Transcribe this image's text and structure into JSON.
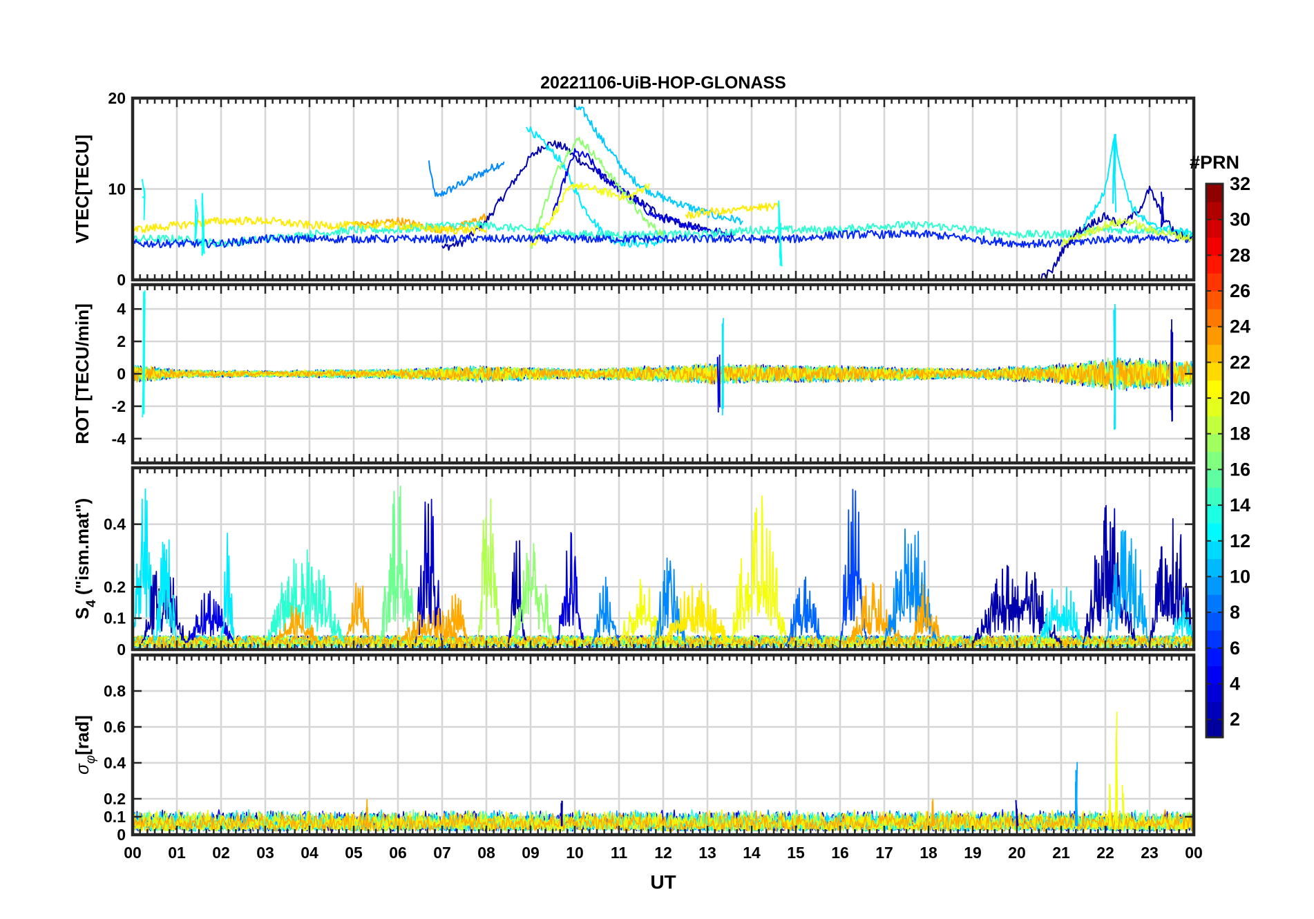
{
  "title": "20221106-UiB-HOP-GLONASS",
  "x_axis": {
    "label": "UT",
    "ticks": [
      "00",
      "01",
      "02",
      "03",
      "04",
      "05",
      "06",
      "07",
      "08",
      "09",
      "10",
      "11",
      "12",
      "13",
      "14",
      "15",
      "16",
      "17",
      "18",
      "19",
      "20",
      "21",
      "22",
      "23",
      "00"
    ],
    "range_hours": [
      0,
      24
    ]
  },
  "colorbar": {
    "label": "#PRN",
    "range": [
      1,
      32
    ],
    "ticks": [
      2,
      4,
      6,
      8,
      10,
      12,
      14,
      16,
      18,
      20,
      22,
      24,
      26,
      28,
      30,
      32
    ],
    "colormap": [
      "#00008f",
      "#0000ff",
      "#0080ff",
      "#00ffff",
      "#80ff80",
      "#ffff00",
      "#ff8000",
      "#ff0000",
      "#800000"
    ]
  },
  "chart_data": [
    {
      "type": "line",
      "panel": "VTEC",
      "ylabel": "VTEC[TECU]",
      "ylim": [
        0,
        20
      ],
      "yticks": [
        "0",
        "10",
        "20"
      ],
      "ytick_values": [
        0,
        10,
        20
      ],
      "grid": true,
      "series": [
        {
          "prn": 9,
          "x": [
            6.7,
            6.8,
            6.9,
            7.0,
            7.2,
            7.4,
            7.6,
            7.8,
            8.0,
            8.2,
            8.4
          ],
          "y": [
            13,
            10,
            9,
            9.5,
            10,
            10.5,
            11,
            11.5,
            12,
            12.5,
            13
          ]
        },
        {
          "prn": 2,
          "x": [
            7.0,
            7.5,
            8.0,
            8.5,
            9.0,
            9.3,
            9.5,
            9.8,
            10.0,
            10.3,
            10.6,
            11.0,
            11.5,
            12.0,
            12.5,
            13.0
          ],
          "y": [
            3.5,
            4.2,
            6.5,
            10,
            13.5,
            14.8,
            15,
            14.5,
            13.5,
            12.5,
            11.5,
            10,
            8.5,
            7,
            6,
            5.5
          ]
        },
        {
          "prn": 12,
          "x": [
            8.9,
            9.1,
            9.3,
            9.5,
            9.7,
            9.9,
            10.2,
            10.5,
            10.8,
            11.2,
            11.6,
            12.0
          ],
          "y": [
            17,
            16,
            15,
            14,
            13,
            11,
            8,
            6,
            4.5,
            4,
            4,
            4.2
          ]
        },
        {
          "prn": 11,
          "x": [
            10.0,
            10.2,
            10.4,
            10.6,
            10.9,
            11.2,
            11.6,
            12.0,
            12.6,
            13.2,
            13.8
          ],
          "y": [
            19,
            18.5,
            17,
            15.5,
            13.5,
            11.5,
            10,
            9,
            8,
            7,
            6.5
          ]
        },
        {
          "prn": 4,
          "x": [
            9.5,
            9.8,
            10.0,
            10.3,
            10.6,
            11.0,
            11.4,
            11.8,
            12.2,
            12.6,
            13.0,
            13.6
          ],
          "y": [
            7,
            11.5,
            14,
            13.5,
            11.5,
            10,
            8.5,
            7,
            6.5,
            6,
            5.5,
            5
          ]
        },
        {
          "prn": 17,
          "x": [
            9.0,
            9.3,
            9.6,
            9.9,
            10.1,
            10.4,
            10.8,
            11.2,
            11.6,
            12.0
          ],
          "y": [
            3.5,
            8,
            12,
            14.5,
            15.5,
            14,
            11.5,
            9,
            6.5,
            5
          ]
        },
        {
          "prn": 20,
          "x": [
            9.0,
            9.2,
            9.5,
            9.8,
            10.0,
            10.4,
            10.8,
            11.2,
            11.7
          ],
          "y": [
            3.5,
            5,
            7,
            9.5,
            10.5,
            10,
            9.5,
            9,
            10.5
          ]
        },
        {
          "prn": 23,
          "x": [
            5.0,
            5.5,
            6.0,
            6.5,
            7.0,
            7.5,
            8.0
          ],
          "y": [
            6,
            6.2,
            6.5,
            6,
            5.5,
            6,
            7
          ]
        },
        {
          "prn": 14,
          "x": [
            0,
            1,
            2,
            3,
            4,
            5,
            6,
            7,
            8,
            9,
            10,
            11,
            12,
            13,
            14,
            15,
            16,
            17,
            18,
            19,
            20,
            21,
            22,
            23,
            24
          ],
          "y": [
            4.5,
            4.5,
            4,
            4.5,
            5,
            5.5,
            5.5,
            6,
            6,
            5.5,
            5,
            5,
            5,
            5,
            5.5,
            5.5,
            5.5,
            6,
            6,
            5.5,
            5,
            5,
            5.5,
            5.5,
            5
          ]
        },
        {
          "prn": 6,
          "x": [
            0,
            1,
            2,
            3,
            4,
            5,
            6,
            7,
            8,
            9,
            10,
            11,
            12,
            13,
            14,
            15,
            16,
            17,
            18,
            19,
            20,
            21,
            22,
            23,
            24
          ],
          "y": [
            4,
            4,
            4,
            4.5,
            4.5,
            4.5,
            4.5,
            4.5,
            4.5,
            4.5,
            4.5,
            4.5,
            4.5,
            4.5,
            4.5,
            4.5,
            5,
            5,
            5,
            4.5,
            4,
            4,
            4.5,
            4.5,
            4.5
          ]
        },
        {
          "prn": 2,
          "x": [
            20.5,
            20.8,
            21.0,
            21.3,
            21.6,
            22.0,
            22.4,
            22.8,
            23.0,
            23.3,
            23.6,
            24.0
          ],
          "y": [
            0,
            1,
            3,
            5,
            6,
            7,
            6,
            8,
            10,
            7,
            5,
            4.5
          ]
        },
        {
          "prn": 12,
          "x": [
            21.5,
            21.8,
            22.0,
            22.2,
            22.4,
            22.6,
            22.8,
            23.0,
            23.5,
            24.0
          ],
          "y": [
            6,
            8,
            10,
            16,
            11,
            8,
            7,
            6,
            5.5,
            5
          ]
        },
        {
          "prn": 21,
          "x": [
            0,
            1,
            2,
            3,
            4,
            5,
            6,
            7,
            8
          ],
          "y": [
            5.5,
            6,
            6.5,
            6.5,
            6,
            6,
            6,
            5.5,
            5.5
          ]
        },
        {
          "prn": 21,
          "x": [
            12.5,
            13,
            13.5,
            14,
            14.6
          ],
          "y": [
            7,
            7.5,
            7.5,
            8,
            8
          ]
        },
        {
          "prn": 19,
          "x": [
            21,
            21.5,
            22,
            22.5,
            23,
            23.5,
            24
          ],
          "y": [
            4,
            5,
            6,
            6.5,
            5.5,
            5,
            4.5
          ]
        }
      ],
      "spikes": [
        {
          "prn": 13,
          "x": 0.25,
          "y": [
            6,
            12
          ]
        },
        {
          "prn": 13,
          "x": 1.45,
          "y": [
            1,
            10
          ]
        },
        {
          "prn": 13,
          "x": 1.6,
          "y": [
            1,
            10
          ]
        },
        {
          "prn": 13,
          "x": 14.65,
          "y": [
            0.5,
            11
          ]
        },
        {
          "prn": 12,
          "x": 22.2,
          "y": [
            6,
            17
          ]
        },
        {
          "prn": 3,
          "x": 23.3,
          "y": [
            5,
            11.5
          ]
        }
      ]
    },
    {
      "type": "line",
      "panel": "ROT",
      "ylabel": "ROT [TECU/min]",
      "ylim": [
        -5.5,
        5.5
      ],
      "yticks": [
        "4",
        "2",
        "0",
        "-2",
        "-4"
      ],
      "ytick_values": [
        4,
        2,
        0,
        -2,
        -4
      ],
      "grid": true,
      "noise_envelope": [
        {
          "x": 0,
          "amp": 1.2
        },
        {
          "x": 1,
          "amp": 0.5
        },
        {
          "x": 3,
          "amp": 0.4
        },
        {
          "x": 6,
          "amp": 0.6
        },
        {
          "x": 8,
          "amp": 1.0
        },
        {
          "x": 10,
          "amp": 0.6
        },
        {
          "x": 13,
          "amp": 1.2
        },
        {
          "x": 16,
          "amp": 1.0
        },
        {
          "x": 19,
          "amp": 0.6
        },
        {
          "x": 21,
          "amp": 1.2
        },
        {
          "x": 22.3,
          "amp": 2.0
        },
        {
          "x": 24,
          "amp": 1.5
        }
      ],
      "spikes": [
        {
          "prn": 13,
          "x": 0.25,
          "y": [
            -3,
            5.2
          ]
        },
        {
          "prn": 4,
          "x": 13.25,
          "y": [
            -2.8,
            1.5
          ]
        },
        {
          "prn": 12,
          "x": 13.35,
          "y": [
            -3.2,
            3.9
          ]
        },
        {
          "prn": 12,
          "x": 22.2,
          "y": [
            -3.5,
            5.4
          ]
        },
        {
          "prn": 2,
          "x": 23.5,
          "y": [
            -3,
            3.5
          ]
        }
      ]
    },
    {
      "type": "line",
      "panel": "S4",
      "ylabel": "S4 (\"ism.mat\")",
      "ylim": [
        0,
        0.58
      ],
      "yticks": [
        "0",
        "0.1",
        "0.2",
        "0.4"
      ],
      "ytick_values": [
        0,
        0.1,
        0.2,
        0.4
      ],
      "grid": true,
      "bursts": [
        {
          "prn": 12,
          "x0": 0.0,
          "x1": 0.5,
          "peak": 0.52
        },
        {
          "prn": 2,
          "x0": 0.2,
          "x1": 1.2,
          "peak": 0.3
        },
        {
          "prn": 12,
          "x0": 0.5,
          "x1": 1.0,
          "peak": 0.38
        },
        {
          "prn": 4,
          "x0": 1.2,
          "x1": 2.3,
          "peak": 0.18
        },
        {
          "prn": 12,
          "x0": 2.0,
          "x1": 2.3,
          "peak": 0.38
        },
        {
          "prn": 14,
          "x0": 3.0,
          "x1": 4.8,
          "peak": 0.32
        },
        {
          "prn": 23,
          "x0": 3.2,
          "x1": 4.2,
          "peak": 0.14
        },
        {
          "prn": 23,
          "x0": 4.8,
          "x1": 5.4,
          "peak": 0.24
        },
        {
          "prn": 16,
          "x0": 5.6,
          "x1": 6.4,
          "peak": 0.52
        },
        {
          "prn": 3,
          "x0": 6.4,
          "x1": 7.0,
          "peak": 0.5
        },
        {
          "prn": 23,
          "x0": 6.0,
          "x1": 7.5,
          "peak": 0.12
        },
        {
          "prn": 23,
          "x0": 7.0,
          "x1": 7.6,
          "peak": 0.18
        },
        {
          "prn": 18,
          "x0": 7.8,
          "x1": 8.3,
          "peak": 0.55
        },
        {
          "prn": 2,
          "x0": 8.5,
          "x1": 8.9,
          "peak": 0.36
        },
        {
          "prn": 17,
          "x0": 8.6,
          "x1": 9.5,
          "peak": 0.4
        },
        {
          "prn": 4,
          "x0": 9.6,
          "x1": 10.2,
          "peak": 0.38
        },
        {
          "prn": 9,
          "x0": 10.4,
          "x1": 11.0,
          "peak": 0.22
        },
        {
          "prn": 20,
          "x0": 11.0,
          "x1": 12.0,
          "peak": 0.22
        },
        {
          "prn": 9,
          "x0": 11.8,
          "x1": 12.5,
          "peak": 0.3
        },
        {
          "prn": 21,
          "x0": 12.0,
          "x1": 13.5,
          "peak": 0.2
        },
        {
          "prn": 20,
          "x0": 13.5,
          "x1": 14.8,
          "peak": 0.48
        },
        {
          "prn": 8,
          "x0": 14.8,
          "x1": 15.6,
          "peak": 0.22
        },
        {
          "prn": 7,
          "x0": 16.0,
          "x1": 16.6,
          "peak": 0.56
        },
        {
          "prn": 23,
          "x0": 16.2,
          "x1": 17.4,
          "peak": 0.22
        },
        {
          "prn": 9,
          "x0": 17.0,
          "x1": 18.2,
          "peak": 0.4
        },
        {
          "prn": 23,
          "x0": 17.6,
          "x1": 18.3,
          "peak": 0.2
        },
        {
          "prn": 2,
          "x0": 19.0,
          "x1": 21.0,
          "peak": 0.28
        },
        {
          "prn": 12,
          "x0": 20.5,
          "x1": 21.5,
          "peak": 0.22
        },
        {
          "prn": 2,
          "x0": 21.5,
          "x1": 22.7,
          "peak": 0.46
        },
        {
          "prn": 10,
          "x0": 22.0,
          "x1": 23.0,
          "peak": 0.4
        },
        {
          "prn": 2,
          "x0": 23.0,
          "x1": 24.0,
          "peak": 0.44
        },
        {
          "prn": 12,
          "x0": 23.5,
          "x1": 24.0,
          "peak": 0.18
        }
      ]
    },
    {
      "type": "line",
      "panel": "sigma_phi",
      "ylabel": "σφ[rad]",
      "ylim": [
        0,
        1.0
      ],
      "yticks": [
        "0",
        "0.1",
        "0.2",
        "0.4",
        "0.6",
        "0.8"
      ],
      "ytick_values": [
        0,
        0.1,
        0.2,
        0.4,
        0.6,
        0.8
      ],
      "grid": true,
      "baseline_range": [
        0.02,
        0.14
      ],
      "spikes": [
        {
          "prn": 10,
          "x": 21.35,
          "y": [
            0.05,
            0.41
          ]
        },
        {
          "prn": 20,
          "x": 22.25,
          "y": [
            0.05,
            0.72
          ]
        },
        {
          "prn": 20,
          "x": 22.1,
          "y": [
            0.05,
            0.3
          ]
        },
        {
          "prn": 20,
          "x": 22.4,
          "y": [
            0.05,
            0.3
          ]
        },
        {
          "prn": 23,
          "x": 5.3,
          "y": [
            0.05,
            0.2
          ]
        },
        {
          "prn": 23,
          "x": 18.1,
          "y": [
            0.05,
            0.2
          ]
        },
        {
          "prn": 2,
          "x": 9.7,
          "y": [
            0.05,
            0.22
          ]
        },
        {
          "prn": 2,
          "x": 20.0,
          "y": [
            0.05,
            0.2
          ]
        }
      ]
    }
  ]
}
